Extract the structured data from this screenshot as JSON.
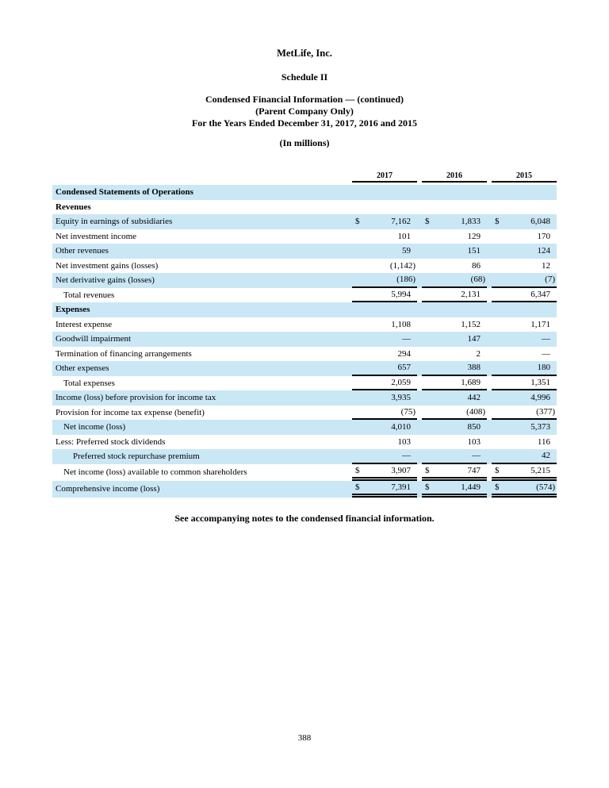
{
  "header": {
    "company": "MetLife, Inc.",
    "schedule": "Schedule II",
    "heading_lines": [
      "Condensed Financial Information — (continued)",
      "(Parent Company Only)",
      "For the Years Ended December 31, 2017, 2016 and 2015"
    ],
    "units": "(In millions)"
  },
  "table": {
    "columns": [
      "2017",
      "2016",
      "2015"
    ],
    "rows": [
      {
        "label": "Condensed Statements of Operations",
        "type": "section",
        "shaded": true,
        "indent": 0
      },
      {
        "label": "Revenues",
        "type": "section",
        "shaded": false,
        "indent": 0
      },
      {
        "label": "Equity in earnings of subsidiaries",
        "shaded": true,
        "indent": 0,
        "dollar": true,
        "values": [
          "7,162",
          "1,833",
          "6,048"
        ],
        "border": "none"
      },
      {
        "label": "Net investment income",
        "shaded": false,
        "indent": 0,
        "dollar": false,
        "values": [
          "101",
          "129",
          "170"
        ],
        "border": "none"
      },
      {
        "label": "Other revenues",
        "shaded": true,
        "indent": 0,
        "dollar": false,
        "values": [
          "59",
          "151",
          "124"
        ],
        "border": "none"
      },
      {
        "label": "Net investment gains (losses)",
        "shaded": false,
        "indent": 0,
        "dollar": false,
        "values": [
          "(1,142)",
          "86",
          "12"
        ],
        "border": "none"
      },
      {
        "label": "Net derivative gains (losses)",
        "shaded": true,
        "indent": 0,
        "dollar": false,
        "values": [
          "(186)",
          "(68)",
          "(7)"
        ],
        "border": "single"
      },
      {
        "label": "Total revenues",
        "shaded": false,
        "indent": 1,
        "dollar": false,
        "values": [
          "5,994",
          "2,131",
          "6,347"
        ],
        "border": "single"
      },
      {
        "label": "Expenses",
        "type": "section",
        "shaded": true,
        "indent": 0
      },
      {
        "label": "Interest expense",
        "shaded": false,
        "indent": 0,
        "dollar": false,
        "values": [
          "1,108",
          "1,152",
          "1,171"
        ],
        "border": "none"
      },
      {
        "label": "Goodwill impairment",
        "shaded": true,
        "indent": 0,
        "dollar": false,
        "values": [
          "—",
          "147",
          "—"
        ],
        "border": "none"
      },
      {
        "label": "Termination of financing arrangements",
        "shaded": false,
        "indent": 0,
        "dollar": false,
        "values": [
          "294",
          "2",
          "—"
        ],
        "border": "none"
      },
      {
        "label": "Other expenses",
        "shaded": true,
        "indent": 0,
        "dollar": false,
        "values": [
          "657",
          "388",
          "180"
        ],
        "border": "single"
      },
      {
        "label": "Total expenses",
        "shaded": false,
        "indent": 1,
        "dollar": false,
        "values": [
          "2,059",
          "1,689",
          "1,351"
        ],
        "border": "single"
      },
      {
        "label": "Income (loss) before provision for income tax",
        "shaded": true,
        "indent": 0,
        "dollar": false,
        "values": [
          "3,935",
          "442",
          "4,996"
        ],
        "border": "none"
      },
      {
        "label": "Provision for income tax expense (benefit)",
        "shaded": false,
        "indent": 0,
        "dollar": false,
        "values": [
          "(75)",
          "(408)",
          "(377)"
        ],
        "border": "single"
      },
      {
        "label": "Net income (loss)",
        "shaded": true,
        "indent": 1,
        "dollar": false,
        "values": [
          "4,010",
          "850",
          "5,373"
        ],
        "border": "none"
      },
      {
        "label": "Less: Preferred stock dividends",
        "shaded": false,
        "indent": 0,
        "dollar": false,
        "values": [
          "103",
          "103",
          "116"
        ],
        "border": "none"
      },
      {
        "label": "Preferred stock repurchase premium",
        "shaded": true,
        "indent": 2,
        "dollar": false,
        "values": [
          "—",
          "—",
          "42"
        ],
        "border": "single"
      },
      {
        "label": "Net income (loss) available to common shareholders",
        "shaded": false,
        "indent": 1,
        "dollar": true,
        "values": [
          "3,907",
          "747",
          "5,215"
        ],
        "border": "double"
      },
      {
        "label": "Comprehensive income (loss)",
        "shaded": true,
        "indent": 0,
        "dollar": true,
        "values": [
          "7,391",
          "1,449",
          "(574)"
        ],
        "border": "double"
      }
    ]
  },
  "footnote": "See accompanying notes to the condensed financial information.",
  "page_number": "388",
  "colors": {
    "row_highlight": "#cae7f6",
    "rule": "#000000"
  }
}
